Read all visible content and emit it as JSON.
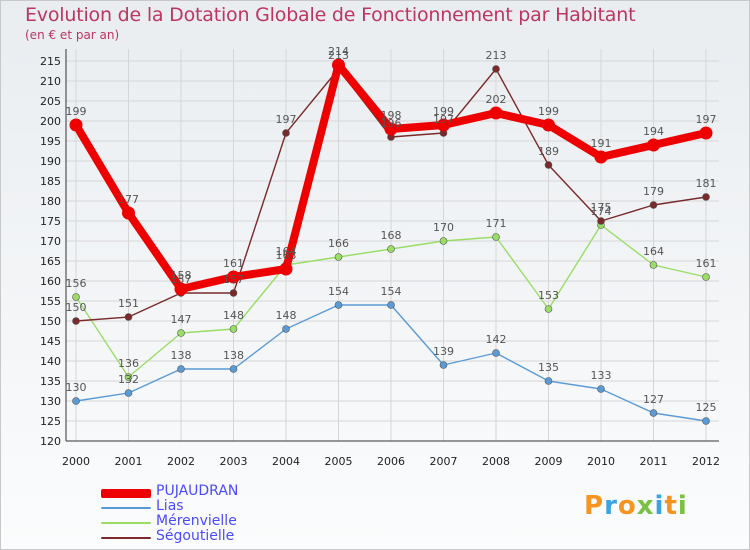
{
  "title": "Evolution de la Dotation Globale de Fonctionnement par Habitant",
  "subtitle": "(en € et par an)",
  "logo": "Proxiti",
  "colors": {
    "title": "#c0355f",
    "legend_text": "#4a4aff",
    "grid": "#d6d6d6",
    "axis": "#333333"
  },
  "chart_data": {
    "type": "line",
    "title": "Evolution de la Dotation Globale de Fonctionnement par Habitant",
    "subtitle": "(en € et par an)",
    "xlabel": "",
    "ylabel": "",
    "ylim": [
      120,
      215
    ],
    "y_ticks": [
      120,
      125,
      130,
      135,
      140,
      145,
      150,
      155,
      160,
      165,
      170,
      175,
      180,
      185,
      190,
      195,
      200,
      205,
      210,
      215
    ],
    "grid": true,
    "legend_position": "bottom-left",
    "categories": [
      "2000",
      "2001",
      "2002",
      "2003",
      "2004",
      "2005",
      "2006",
      "2007",
      "2008",
      "2009",
      "2010",
      "2011",
      "2012"
    ],
    "series": [
      {
        "name": "PUJAUDRAN",
        "color": "#ee0000",
        "emphasis": true,
        "values": [
          199,
          177,
          158,
          161,
          163,
          214,
          198,
          199,
          202,
          199,
          191,
          194,
          197
        ]
      },
      {
        "name": "Lias",
        "color": "#5b9bd5",
        "emphasis": false,
        "values": [
          130,
          132,
          138,
          138,
          148,
          154,
          154,
          139,
          142,
          135,
          133,
          127,
          125
        ]
      },
      {
        "name": "Mérenvielle",
        "color": "#99dd66",
        "emphasis": false,
        "values": [
          156,
          136,
          147,
          148,
          164,
          166,
          168,
          170,
          171,
          153,
          174,
          164,
          161
        ]
      },
      {
        "name": "Ségoutielle",
        "color": "#7a2a2a",
        "emphasis": false,
        "values": [
          150,
          151,
          157,
          157,
          197,
          213,
          196,
          197,
          213,
          189,
          175,
          179,
          181
        ]
      }
    ]
  }
}
